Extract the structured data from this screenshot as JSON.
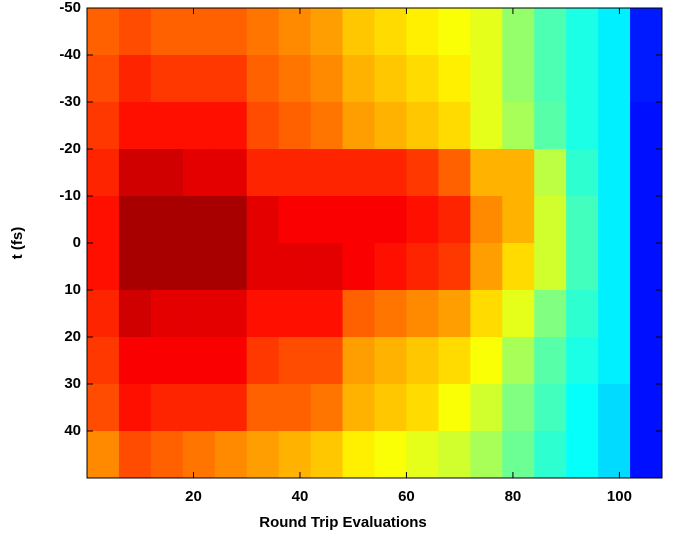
{
  "chart_data": {
    "type": "heatmap",
    "colormap": "jet",
    "zlim": [
      0,
      1
    ],
    "xlabel": "Round Trip Evaluations",
    "ylabel": "t (fs)",
    "x": [
      3,
      9,
      15,
      21,
      27,
      33,
      39,
      45,
      51,
      57,
      63,
      69,
      75,
      81,
      87,
      93,
      99,
      105
    ],
    "y": [
      -45,
      -35,
      -25,
      -15,
      -5,
      5,
      15,
      25,
      35,
      45
    ],
    "z": [
      [
        0.78,
        0.8,
        0.78,
        0.78,
        0.78,
        0.76,
        0.74,
        0.72,
        0.68,
        0.66,
        0.64,
        0.62,
        0.6,
        0.52,
        0.45,
        0.4,
        0.36,
        0.15
      ],
      [
        0.8,
        0.84,
        0.82,
        0.82,
        0.82,
        0.78,
        0.76,
        0.74,
        0.7,
        0.68,
        0.66,
        0.64,
        0.6,
        0.52,
        0.45,
        0.4,
        0.36,
        0.15
      ],
      [
        0.82,
        0.86,
        0.86,
        0.86,
        0.86,
        0.8,
        0.78,
        0.76,
        0.72,
        0.7,
        0.68,
        0.66,
        0.6,
        0.54,
        0.46,
        0.4,
        0.36,
        0.14
      ],
      [
        0.84,
        0.92,
        0.92,
        0.9,
        0.9,
        0.84,
        0.84,
        0.84,
        0.84,
        0.84,
        0.82,
        0.78,
        0.7,
        0.7,
        0.56,
        0.42,
        0.36,
        0.14
      ],
      [
        0.86,
        0.96,
        0.96,
        0.96,
        0.96,
        0.9,
        0.88,
        0.88,
        0.88,
        0.88,
        0.86,
        0.84,
        0.74,
        0.7,
        0.58,
        0.44,
        0.36,
        0.14
      ],
      [
        0.86,
        0.96,
        0.96,
        0.96,
        0.96,
        0.9,
        0.9,
        0.9,
        0.88,
        0.86,
        0.84,
        0.82,
        0.72,
        0.66,
        0.58,
        0.44,
        0.36,
        0.14
      ],
      [
        0.84,
        0.92,
        0.9,
        0.9,
        0.9,
        0.86,
        0.86,
        0.86,
        0.78,
        0.76,
        0.74,
        0.72,
        0.66,
        0.6,
        0.5,
        0.42,
        0.36,
        0.14
      ],
      [
        0.82,
        0.88,
        0.88,
        0.88,
        0.88,
        0.82,
        0.8,
        0.8,
        0.72,
        0.7,
        0.68,
        0.66,
        0.62,
        0.54,
        0.46,
        0.4,
        0.36,
        0.14
      ],
      [
        0.8,
        0.86,
        0.84,
        0.84,
        0.84,
        0.78,
        0.78,
        0.76,
        0.7,
        0.68,
        0.66,
        0.62,
        0.58,
        0.5,
        0.44,
        0.38,
        0.34,
        0.14
      ],
      [
        0.74,
        0.8,
        0.78,
        0.76,
        0.74,
        0.72,
        0.7,
        0.68,
        0.64,
        0.62,
        0.6,
        0.58,
        0.54,
        0.48,
        0.42,
        0.38,
        0.34,
        0.14
      ]
    ],
    "xlim": [
      0,
      108
    ],
    "ylim": [
      -50,
      50
    ],
    "yreverse": true,
    "xticks": [
      20,
      40,
      60,
      80,
      100
    ],
    "yticks": [
      -50,
      -40,
      -30,
      -20,
      -10,
      0,
      10,
      20,
      30,
      40
    ]
  }
}
